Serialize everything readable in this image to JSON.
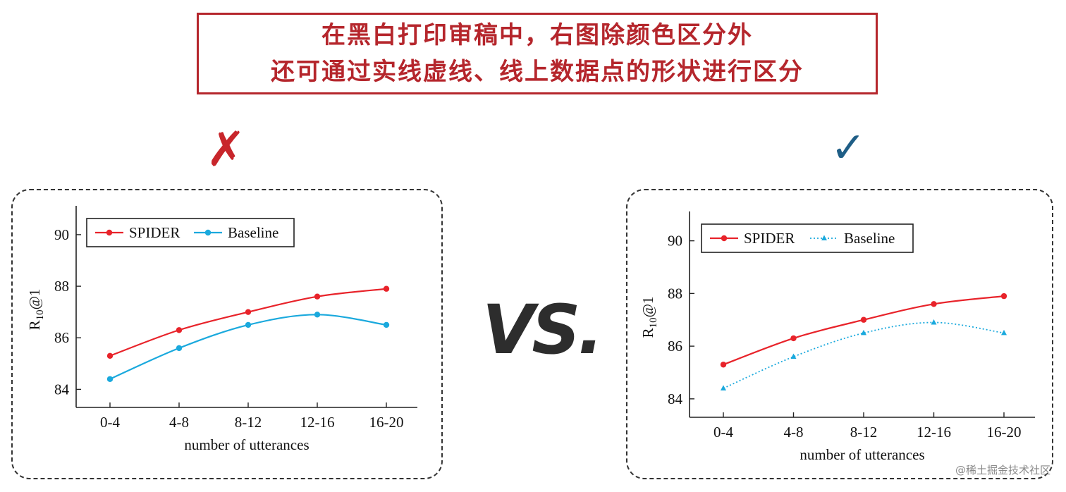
{
  "banner": {
    "line1": "在黑白打印审稿中，右图除颜色区分外",
    "line2": "还可通过实线虚线、线上数据点的形状进行区分"
  },
  "marks": {
    "wrong": "✗",
    "right": "✓",
    "vs": "VS."
  },
  "colors": {
    "accent_red": "#b5262c",
    "check_blue": "#1f5e86",
    "spider": "#e8232a",
    "baseline": "#1aa9dd"
  },
  "watermark": "@稀土掘金技术社区",
  "chart_data": [
    {
      "type": "line",
      "categories": [
        "0-4",
        "4-8",
        "8-12",
        "12-16",
        "16-20"
      ],
      "xlabel": "number of utterances",
      "ylabel": "R10@1",
      "ylabel_main": "R",
      "ylabel_sub": "10",
      "ylabel_tail": "@1",
      "ylim": [
        83.3,
        90.9
      ],
      "yticks": [
        84,
        86,
        88,
        90
      ],
      "legend": "top-left",
      "series": [
        {
          "name": "SPIDER",
          "values": [
            85.3,
            86.3,
            87.0,
            87.6,
            87.9
          ],
          "color": "#e8232a",
          "line": "solid",
          "marker": "circle"
        },
        {
          "name": "Baseline",
          "values": [
            84.4,
            85.6,
            86.5,
            86.9,
            86.5
          ],
          "color": "#1aa9dd",
          "line": "solid",
          "marker": "circle"
        }
      ]
    },
    {
      "type": "line",
      "categories": [
        "0-4",
        "4-8",
        "8-12",
        "12-16",
        "16-20"
      ],
      "xlabel": "number of utterances",
      "ylabel": "R10@1",
      "ylabel_main": "R",
      "ylabel_sub": "10",
      "ylabel_tail": "@1",
      "ylim": [
        83.3,
        90.9
      ],
      "yticks": [
        84,
        86,
        88,
        90
      ],
      "legend": "top-left",
      "series": [
        {
          "name": "SPIDER",
          "values": [
            85.3,
            86.3,
            87.0,
            87.6,
            87.9
          ],
          "color": "#e8232a",
          "line": "solid",
          "marker": "circle"
        },
        {
          "name": "Baseline",
          "values": [
            84.4,
            85.6,
            86.5,
            86.9,
            86.5
          ],
          "color": "#1aa9dd",
          "line": "dotted",
          "marker": "triangle"
        }
      ]
    }
  ]
}
